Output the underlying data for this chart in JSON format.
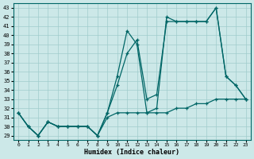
{
  "xlabel": "Humidex (Indice chaleur)",
  "bg_color": "#cce8e8",
  "grid_color": "#a0cccc",
  "line_color": "#006666",
  "xlim": [
    -0.5,
    23.5
  ],
  "ylim": [
    28.5,
    43.5
  ],
  "yticks": [
    29,
    30,
    31,
    32,
    33,
    34,
    35,
    36,
    37,
    38,
    39,
    40,
    41,
    42,
    43
  ],
  "xticks": [
    0,
    1,
    2,
    3,
    4,
    5,
    6,
    7,
    8,
    9,
    10,
    11,
    12,
    13,
    14,
    15,
    16,
    17,
    18,
    19,
    20,
    21,
    22,
    23
  ],
  "series1_x": [
    0,
    1,
    2,
    3,
    4,
    5,
    6,
    7,
    8,
    9,
    10,
    11,
    12,
    13,
    14,
    15,
    16,
    17,
    18,
    19,
    20,
    21,
    22,
    23
  ],
  "series1_y": [
    31.5,
    30.0,
    29.0,
    30.5,
    30.0,
    30.0,
    30.0,
    30.0,
    29.0,
    31.5,
    35.5,
    40.5,
    39.0,
    31.5,
    32.0,
    42.0,
    41.5,
    41.5,
    41.5,
    41.5,
    43.0,
    35.5,
    34.5,
    33.0
  ],
  "series2_x": [
    0,
    1,
    2,
    3,
    4,
    5,
    6,
    7,
    8,
    9,
    10,
    11,
    12,
    13,
    14,
    15,
    16,
    17,
    18,
    19,
    20,
    21,
    22,
    23
  ],
  "series2_y": [
    31.5,
    30.0,
    29.0,
    30.5,
    30.0,
    30.0,
    30.0,
    30.0,
    29.0,
    31.5,
    34.5,
    38.0,
    39.5,
    33.0,
    33.5,
    41.5,
    41.5,
    41.5,
    41.5,
    41.5,
    43.0,
    35.5,
    34.5,
    33.0
  ],
  "series3_x": [
    0,
    1,
    2,
    3,
    4,
    5,
    6,
    7,
    8,
    9,
    10,
    11,
    12,
    13,
    14,
    15,
    16,
    17,
    18,
    19,
    20,
    21,
    22,
    23
  ],
  "series3_y": [
    31.5,
    30.0,
    29.0,
    30.5,
    30.0,
    30.0,
    30.0,
    30.0,
    29.0,
    31.0,
    31.5,
    31.5,
    31.5,
    31.5,
    31.5,
    31.5,
    32.0,
    32.0,
    32.5,
    32.5,
    33.0,
    33.0,
    33.0,
    33.0
  ]
}
